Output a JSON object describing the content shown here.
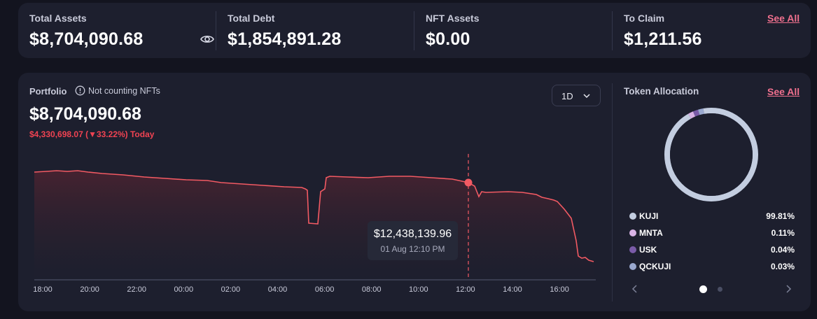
{
  "summary": {
    "total_assets": {
      "label": "Total Assets",
      "value": "$8,704,090.68"
    },
    "total_debt": {
      "label": "Total Debt",
      "value": "$1,854,891.28"
    },
    "nft_assets": {
      "label": "NFT Assets",
      "value": "$0.00"
    },
    "to_claim": {
      "label": "To Claim",
      "value": "$1,211.56"
    },
    "see_all_label": "See All"
  },
  "portfolio": {
    "label": "Portfolio",
    "note": "Not counting NFTs",
    "value": "$8,704,090.68",
    "change": "$4,330,698.07 (▼33.22%) Today",
    "range": "1D",
    "tooltip": {
      "value": "$12,438,139.96",
      "date": "01 Aug 12:10 PM"
    },
    "x_ticks": [
      "18:00",
      "20:00",
      "22:00",
      "00:00",
      "02:00",
      "04:00",
      "06:00",
      "08:00",
      "10:00",
      "12:00",
      "14:00",
      "16:00"
    ],
    "line_color": "#f25a63"
  },
  "allocation": {
    "label": "Token Allocation",
    "see_all_label": "See All",
    "items": [
      {
        "name": "KUJI",
        "pct": "99.81%",
        "value": 99.81,
        "color": "#c3cde0"
      },
      {
        "name": "MNTA",
        "pct": "0.11%",
        "value": 0.11,
        "color": "#d9b3e6"
      },
      {
        "name": "USK",
        "pct": "0.04%",
        "value": 0.04,
        "color": "#7a5ba8"
      },
      {
        "name": "QCKUJI",
        "pct": "0.03%",
        "value": 0.03,
        "color": "#9aa8cf"
      }
    ]
  }
}
